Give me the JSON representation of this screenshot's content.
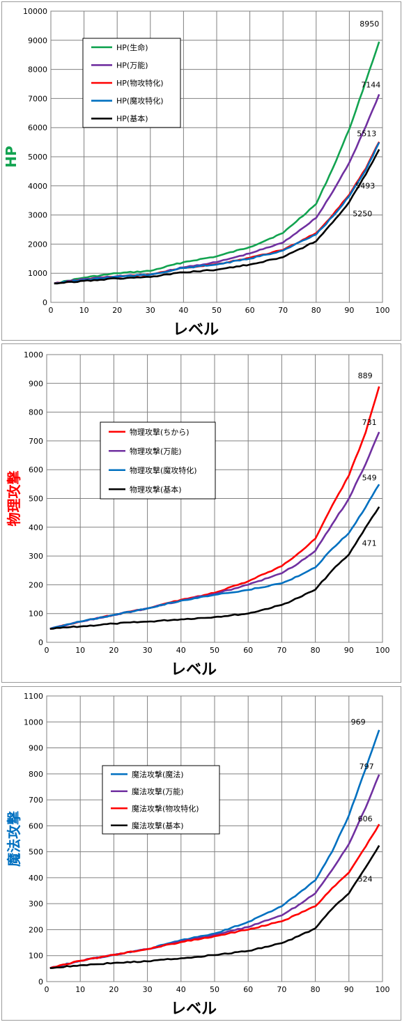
{
  "chart_data": [
    {
      "type": "line",
      "ylabel": "HP",
      "ylabel_color": "#12a350",
      "xlabel": "レベル",
      "xlim": [
        0,
        100
      ],
      "ylim": [
        0,
        10000
      ],
      "xticks": [
        0,
        10,
        20,
        30,
        40,
        50,
        60,
        70,
        80,
        90,
        100
      ],
      "yticks": [
        0,
        1000,
        2000,
        3000,
        4000,
        5000,
        6000,
        7000,
        8000,
        9000,
        10000
      ],
      "grid": true,
      "legend_position": "upper-left",
      "series": [
        {
          "name": "HP(生命)",
          "color": "#12a350",
          "x": [
            1,
            10,
            20,
            30,
            40,
            50,
            60,
            70,
            80,
            85,
            90,
            95,
            99
          ],
          "y": [
            650,
            850,
            1000,
            1080,
            1380,
            1580,
            1900,
            2380,
            3380,
            4600,
            5950,
            7600,
            8950
          ],
          "end_label": "8950"
        },
        {
          "name": "HP(万能)",
          "color": "#7030a0",
          "x": [
            1,
            10,
            20,
            30,
            40,
            50,
            60,
            70,
            80,
            85,
            90,
            95,
            99
          ],
          "y": [
            650,
            800,
            900,
            950,
            1200,
            1380,
            1680,
            2050,
            2900,
            3800,
            4800,
            6050,
            7144
          ],
          "end_label": "7144"
        },
        {
          "name": "HP(物攻特化)",
          "color": "#ff0000",
          "x": [
            1,
            10,
            20,
            30,
            40,
            50,
            60,
            70,
            80,
            85,
            90,
            95,
            99
          ],
          "y": [
            650,
            770,
            880,
            950,
            1180,
            1310,
            1530,
            1800,
            2380,
            3000,
            3700,
            4600,
            5513
          ],
          "end_label": "5513"
        },
        {
          "name": "HP(魔攻特化)",
          "color": "#0070c0",
          "x": [
            1,
            10,
            20,
            30,
            40,
            50,
            60,
            70,
            80,
            85,
            90,
            95,
            99
          ],
          "y": [
            650,
            770,
            880,
            950,
            1180,
            1300,
            1500,
            1780,
            2330,
            2950,
            3650,
            4550,
            5493
          ],
          "end_label": "5493"
        },
        {
          "name": "HP(基本)",
          "color": "#000000",
          "x": [
            1,
            10,
            20,
            30,
            40,
            50,
            60,
            70,
            80,
            85,
            90,
            95,
            99
          ],
          "y": [
            650,
            740,
            820,
            870,
            1030,
            1120,
            1300,
            1550,
            2100,
            2750,
            3450,
            4400,
            5250
          ],
          "end_label": "5250"
        }
      ]
    },
    {
      "type": "line",
      "ylabel": "物理攻撃",
      "ylabel_color": "#ff0000",
      "xlabel": "レベル",
      "xlim": [
        0,
        100
      ],
      "ylim": [
        0,
        1000
      ],
      "xticks": [
        0,
        10,
        20,
        30,
        40,
        50,
        60,
        70,
        80,
        90,
        100
      ],
      "yticks": [
        0,
        100,
        200,
        300,
        400,
        500,
        600,
        700,
        800,
        900,
        1000
      ],
      "grid": true,
      "legend_position": "center-left",
      "series": [
        {
          "name": "物理攻撃(ちから)",
          "color": "#ff0000",
          "x": [
            1,
            10,
            20,
            30,
            40,
            50,
            60,
            70,
            75,
            80,
            85,
            90,
            95,
            99
          ],
          "y": [
            47,
            72,
            95,
            118,
            148,
            172,
            212,
            265,
            310,
            360,
            475,
            580,
            730,
            889
          ],
          "end_label": "889"
        },
        {
          "name": "物理攻撃(万能)",
          "color": "#7030a0",
          "x": [
            1,
            10,
            20,
            30,
            40,
            50,
            60,
            70,
            75,
            80,
            85,
            90,
            95,
            99
          ],
          "y": [
            47,
            72,
            95,
            118,
            145,
            168,
            200,
            240,
            275,
            318,
            410,
            500,
            620,
            731
          ],
          "end_label": "731"
        },
        {
          "name": "物理攻撃(魔攻特化)",
          "color": "#0070c0",
          "x": [
            1,
            10,
            20,
            30,
            40,
            50,
            60,
            70,
            75,
            80,
            85,
            90,
            95,
            99
          ],
          "y": [
            47,
            72,
            95,
            118,
            145,
            165,
            182,
            205,
            230,
            260,
            325,
            380,
            470,
            549
          ],
          "end_label": "549"
        },
        {
          "name": "物理攻撃(基本)",
          "color": "#000000",
          "x": [
            1,
            10,
            20,
            30,
            40,
            50,
            60,
            70,
            75,
            80,
            85,
            90,
            95,
            99
          ],
          "y": [
            47,
            55,
            65,
            72,
            80,
            88,
            100,
            130,
            155,
            183,
            250,
            305,
            400,
            471
          ],
          "end_label": "471"
        }
      ]
    },
    {
      "type": "line",
      "ylabel": "魔法攻撃",
      "ylabel_color": "#0070c0",
      "xlabel": "レベル",
      "xlim": [
        0,
        100
      ],
      "ylim": [
        0,
        1100
      ],
      "xticks": [
        0,
        10,
        20,
        30,
        40,
        50,
        60,
        70,
        80,
        90,
        100
      ],
      "yticks": [
        0,
        100,
        200,
        300,
        400,
        500,
        600,
        700,
        800,
        900,
        1000,
        1100
      ],
      "grid": true,
      "legend_position": "center-left",
      "series": [
        {
          "name": "魔法攻撃(魔法)",
          "color": "#0070c0",
          "x": [
            1,
            10,
            20,
            30,
            40,
            50,
            60,
            70,
            75,
            80,
            85,
            90,
            95,
            99
          ],
          "y": [
            52,
            80,
            103,
            125,
            160,
            185,
            230,
            290,
            340,
            390,
            500,
            640,
            820,
            969
          ],
          "end_label": "969"
        },
        {
          "name": "魔法攻撃(万能)",
          "color": "#7030a0",
          "x": [
            1,
            10,
            20,
            30,
            40,
            50,
            60,
            70,
            75,
            80,
            85,
            90,
            95,
            99
          ],
          "y": [
            52,
            80,
            103,
            125,
            155,
            180,
            210,
            255,
            295,
            340,
            430,
            530,
            670,
            797
          ],
          "end_label": "797"
        },
        {
          "name": "魔法攻撃(物攻特化)",
          "color": "#ff0000",
          "x": [
            1,
            10,
            20,
            30,
            40,
            50,
            60,
            70,
            75,
            80,
            85,
            90,
            95,
            99
          ],
          "y": [
            52,
            80,
            103,
            125,
            152,
            175,
            200,
            232,
            260,
            290,
            360,
            420,
            520,
            606
          ],
          "end_label": "606"
        },
        {
          "name": "魔法攻撃(基本)",
          "color": "#000000",
          "x": [
            1,
            10,
            20,
            30,
            40,
            50,
            60,
            70,
            75,
            80,
            85,
            90,
            95,
            99
          ],
          "y": [
            52,
            63,
            72,
            78,
            90,
            102,
            118,
            148,
            175,
            205,
            280,
            340,
            440,
            524
          ],
          "end_label": "524"
        }
      ]
    }
  ]
}
